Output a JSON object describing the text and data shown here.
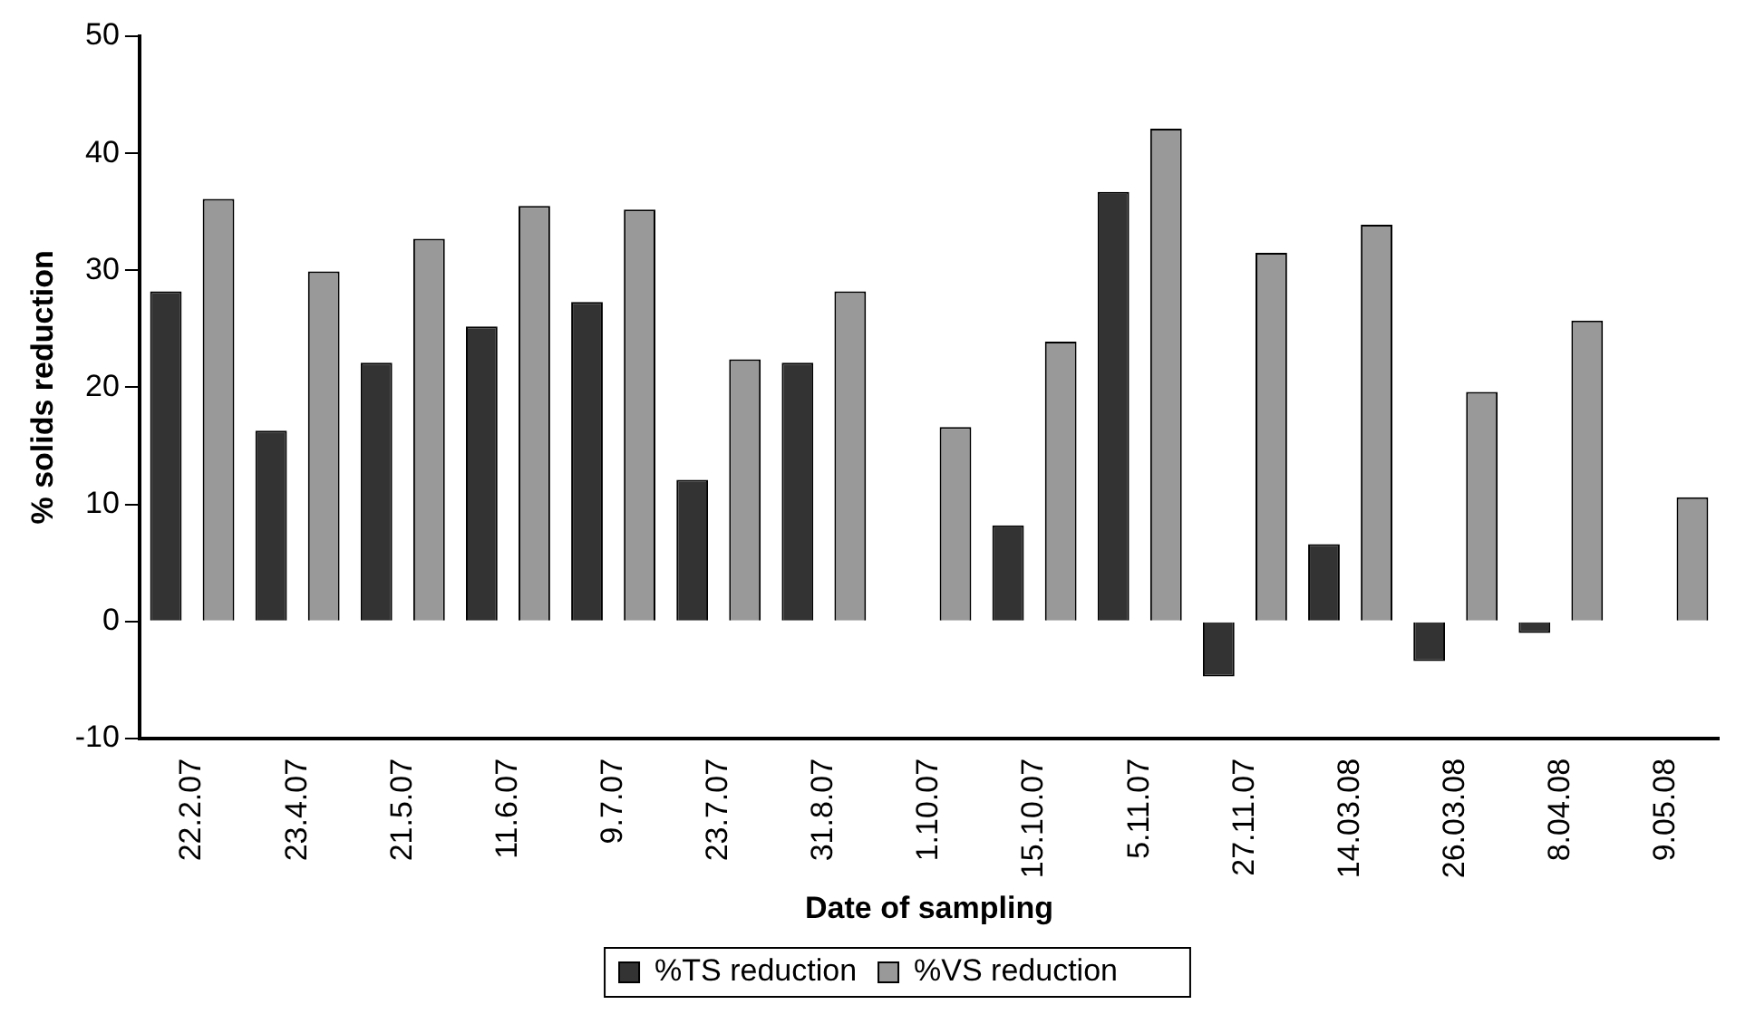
{
  "chart_data": {
    "type": "bar",
    "xlabel": "Date of sampling",
    "ylabel": "% solids reduction",
    "categories": [
      "22.2.07",
      "23.4.07",
      "21.5.07",
      "11.6.07",
      "9.7.07",
      "23.7.07",
      "31.8.07",
      "1.10.07",
      "15.10.07",
      "5.11.07",
      "27.11.07",
      "14.03.08",
      "26.03.08",
      "8.04.08",
      "9.05.08"
    ],
    "series": [
      {
        "name": "%TS reduction",
        "color": "#333333",
        "values": [
          28.2,
          16.3,
          22.1,
          25.2,
          27.3,
          12.1,
          22.1,
          null,
          8.2,
          36.7,
          -4.7,
          6.6,
          -3.4,
          -1.0,
          null
        ]
      },
      {
        "name": "%VS reduction",
        "color": "#999999",
        "values": [
          36.1,
          29.9,
          32.7,
          35.5,
          35.2,
          22.4,
          28.2,
          16.6,
          23.9,
          42.1,
          31.5,
          33.9,
          19.6,
          25.7,
          10.6
        ]
      }
    ],
    "ylim": [
      -10,
      50
    ],
    "yticks": [
      -10,
      0,
      10,
      20,
      30,
      40,
      50
    ],
    "grid": false,
    "legend": "bottom"
  }
}
